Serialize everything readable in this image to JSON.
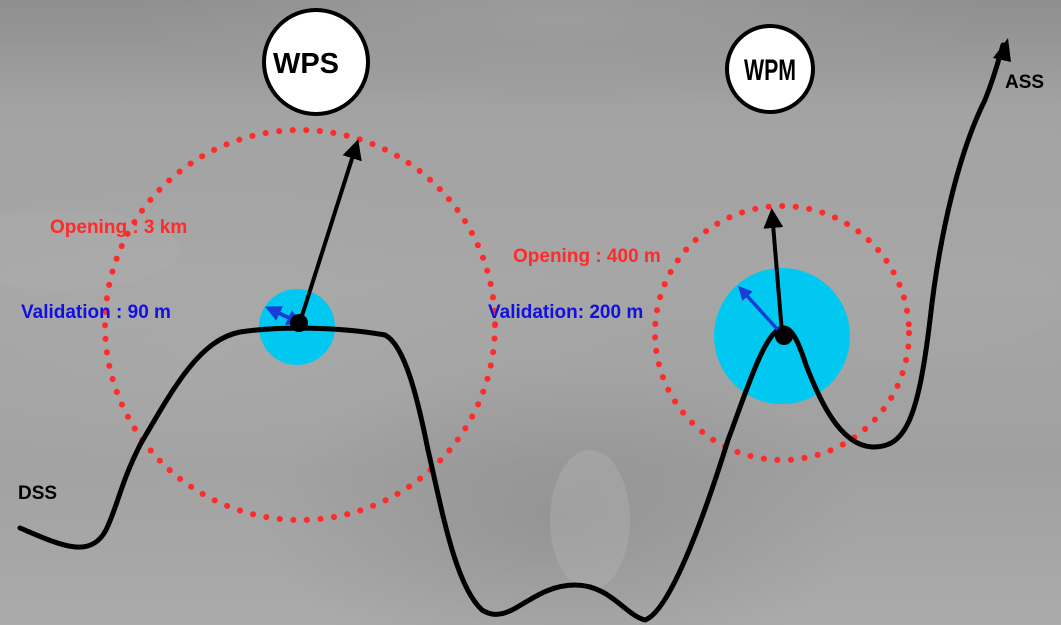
{
  "colors": {
    "opening": "#ff2a2a",
    "validation": "#1010e0",
    "zone_fill": "#00c8f0",
    "terrain": "#000000",
    "vector": "#000000",
    "validation_arrow": "#1a3cd8"
  },
  "nodes": {
    "wps": {
      "label": "WPS"
    },
    "wpm": {
      "label": "WPM"
    }
  },
  "labels": {
    "dss": "DSS",
    "ass": "ASS",
    "wps_opening": "Opening : 3 km",
    "wps_validation": "Validation : 90 m",
    "wpm_opening": "Opening : 400 m",
    "wpm_validation": "Validation: 200 m"
  }
}
